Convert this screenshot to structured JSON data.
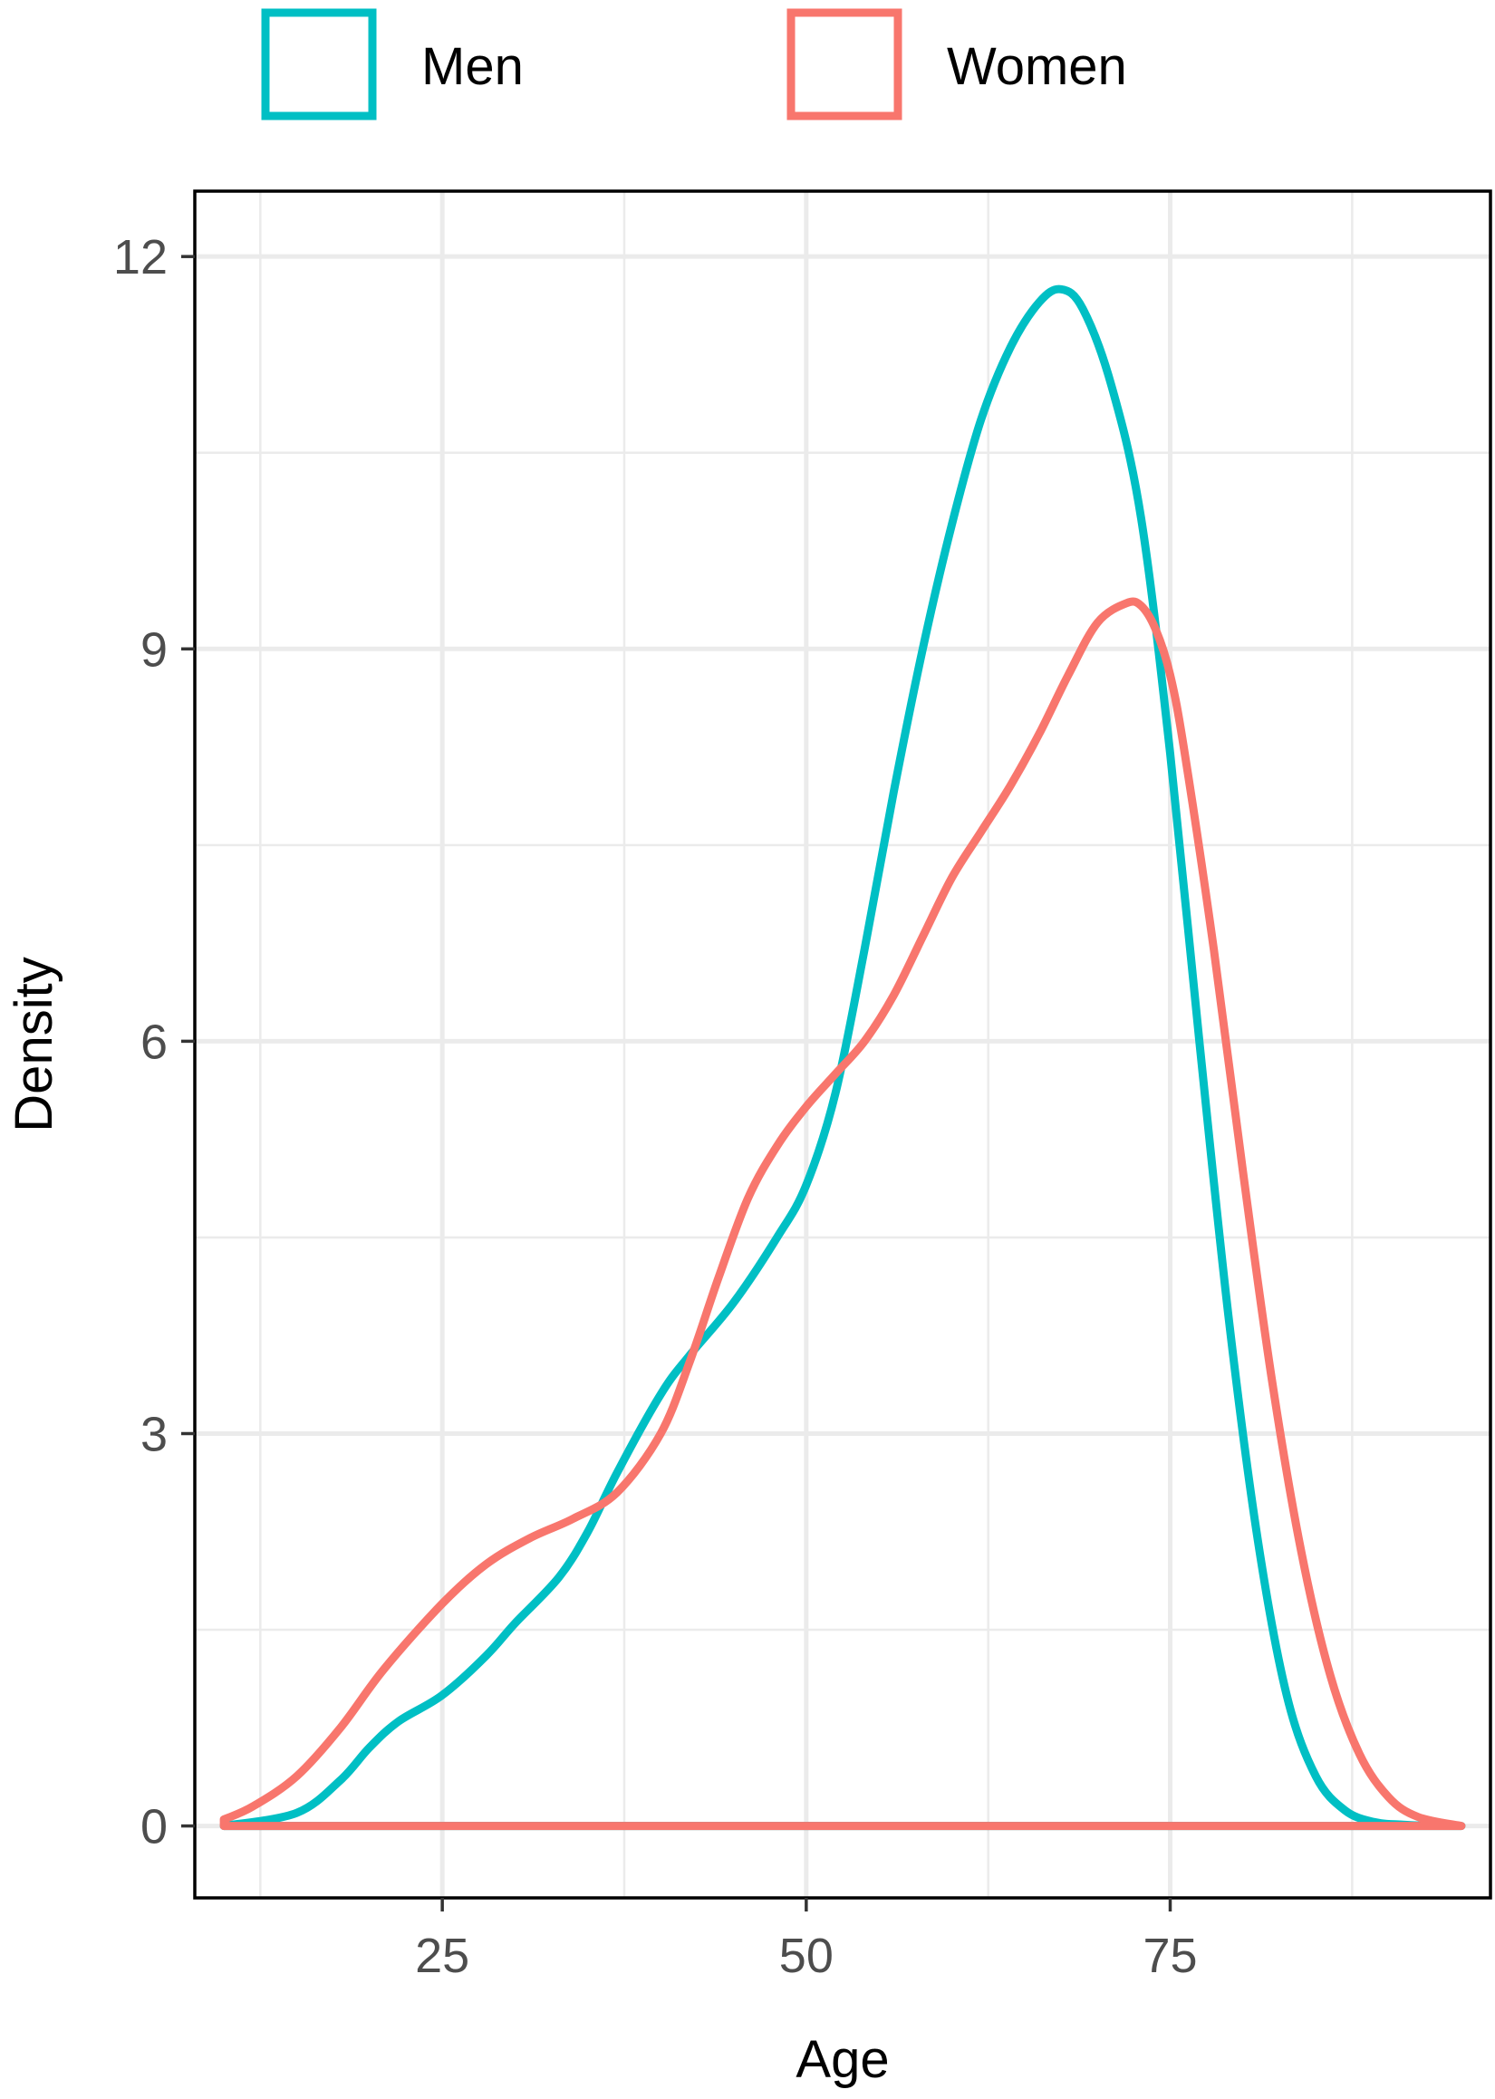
{
  "chart_data": {
    "type": "line",
    "xlabel": "Age",
    "ylabel": "Density",
    "xlim": [
      8,
      97
    ],
    "ylim": [
      -0.55,
      12.5
    ],
    "x_ticks": [
      25,
      50,
      75
    ],
    "x_tick_labels": [
      "25",
      "50",
      "75"
    ],
    "x_minor_ticks": [
      12.5,
      37.5,
      62.5,
      87.5
    ],
    "y_ticks": [
      0,
      3,
      6,
      9,
      12
    ],
    "y_tick_labels": [
      "0",
      "3",
      "6",
      "9",
      "12"
    ],
    "y_minor_ticks": [
      1.5,
      4.5,
      7.5,
      10.5
    ],
    "grid": true,
    "legend_position": "top",
    "series": [
      {
        "name": "Men",
        "color": "#00BFC4",
        "x": [
          10,
          15,
          18,
          20,
          22,
          25,
          28,
          30,
          33,
          35,
          37,
          40,
          42,
          45,
          48,
          50,
          52,
          54,
          56,
          58,
          60,
          62,
          64,
          66,
          67.5,
          69,
          71,
          73,
          75,
          77,
          79,
          81,
          83,
          85,
          87,
          89,
          91,
          93,
          95
        ],
        "y": [
          0.0,
          0.1,
          0.35,
          0.6,
          0.8,
          1.0,
          1.3,
          1.55,
          1.9,
          2.25,
          2.7,
          3.3,
          3.6,
          4.0,
          4.5,
          4.9,
          5.6,
          6.7,
          7.9,
          9.0,
          9.95,
          10.75,
          11.3,
          11.65,
          11.75,
          11.6,
          11.0,
          10.0,
          8.2,
          6.0,
          3.9,
          2.2,
          1.0,
          0.38,
          0.12,
          0.03,
          0.01,
          0.0,
          0.0
        ]
      },
      {
        "name": "Women",
        "color": "#F8766D",
        "x": [
          10,
          12,
          15,
          18,
          21,
          25,
          28,
          31,
          34,
          37,
          40,
          42,
          44,
          46,
          48,
          50,
          52,
          54,
          56,
          58,
          60,
          62,
          64,
          66,
          68,
          70,
          72,
          73,
          74,
          75,
          76,
          78,
          80,
          82,
          84,
          86,
          88,
          90,
          92,
          95
        ],
        "y": [
          0.05,
          0.15,
          0.38,
          0.75,
          1.2,
          1.7,
          2.0,
          2.2,
          2.35,
          2.55,
          3.0,
          3.55,
          4.2,
          4.8,
          5.2,
          5.5,
          5.75,
          6.0,
          6.35,
          6.8,
          7.25,
          7.6,
          7.95,
          8.35,
          8.8,
          9.2,
          9.35,
          9.33,
          9.15,
          8.8,
          8.2,
          6.7,
          5.0,
          3.4,
          2.1,
          1.15,
          0.55,
          0.22,
          0.07,
          0.0
        ]
      }
    ]
  }
}
